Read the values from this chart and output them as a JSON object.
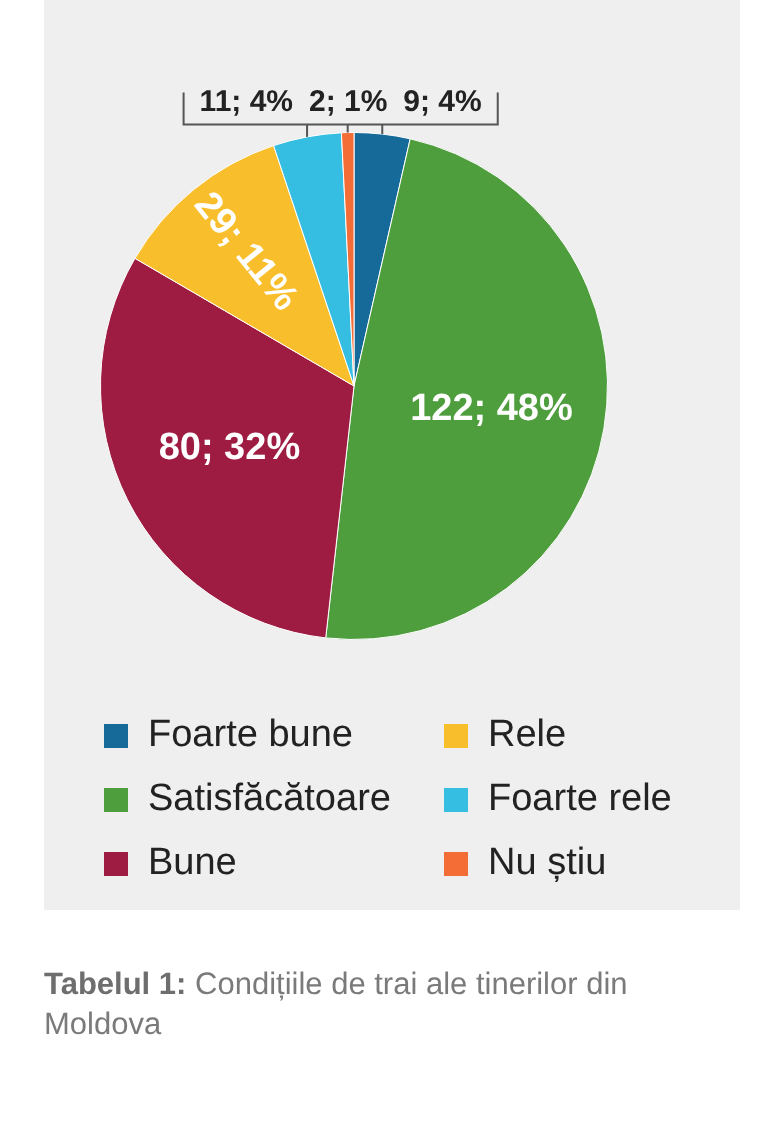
{
  "chart_data": {
    "type": "pie",
    "title": "Tabelul 1: Condițiile de trai ale tinerilor din Moldova",
    "categories": [
      "Foarte bune",
      "Satisfăcătoare",
      "Bune",
      "Rele",
      "Foarte rele",
      "Nu știu"
    ],
    "values": [
      9,
      122,
      80,
      29,
      11,
      2
    ],
    "colors": [
      "#166a9a",
      "#4f9e3e",
      "#9e1b42",
      "#f9be2c",
      "#35bde2",
      "#f56d36"
    ],
    "value_labels": [
      "9; 4%",
      "122; 48%",
      "80; 32%",
      "29; 11%",
      "11; 4%",
      "2; 1%"
    ],
    "legend": "bottom"
  }
}
